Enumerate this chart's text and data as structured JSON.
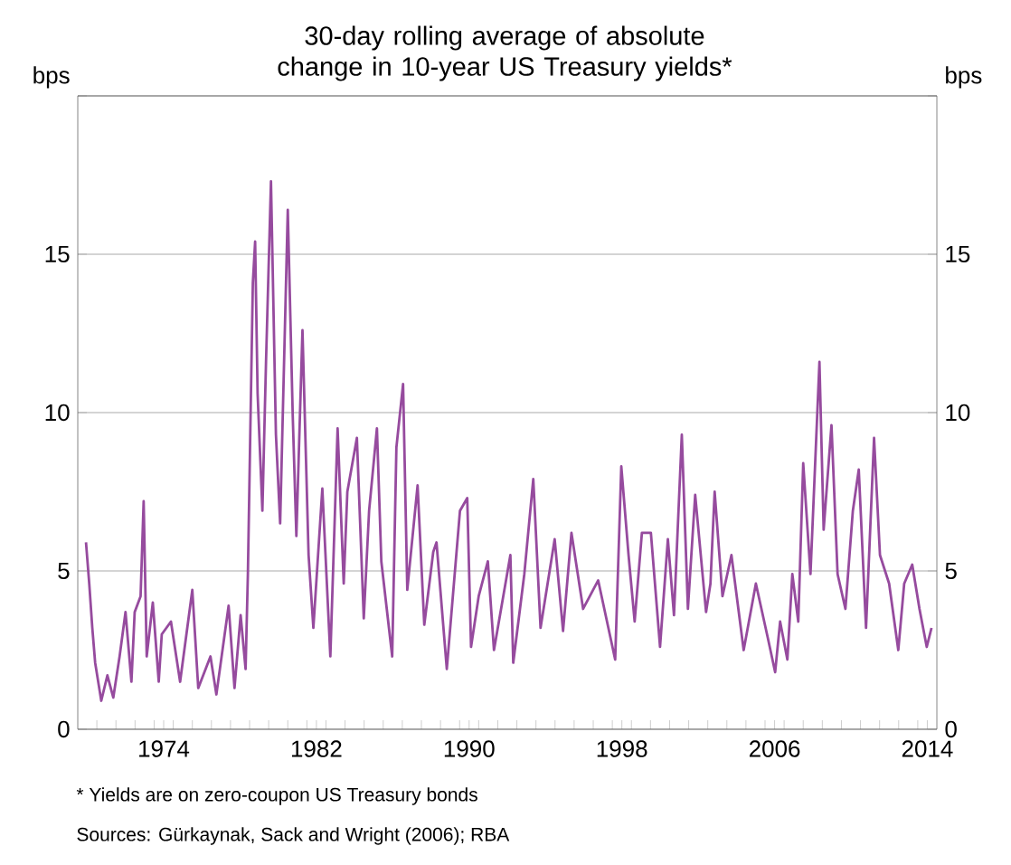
{
  "chart_data": {
    "type": "line",
    "title": "30-day rolling average of absolute change in 10-year US Treasury yields*",
    "ylabel": "bps",
    "y2label": "bps",
    "annotations": [
      "*    Yields are on zero-coupon US Treasury bonds",
      "Sources:  Gürkaynak, Sack and Wright (2006); RBA"
    ],
    "series": [
      {
        "color": "#964b9e",
        "axis": "y",
        "x": [
          1969.93,
          1970.1,
          1970.26,
          1970.41,
          1970.73,
          1971.05,
          1971.36,
          1971.69,
          1972.0,
          1972.31,
          1972.48,
          1972.79,
          1972.95,
          1973.11,
          1973.43,
          1973.74,
          1973.9,
          1974.38,
          1974.86,
          1975.5,
          1975.81,
          1976.45,
          1976.76,
          1977.4,
          1977.71,
          1978.03,
          1978.29,
          1978.41,
          1978.54,
          1978.67,
          1978.79,
          1978.92,
          1979.17,
          1979.36,
          1979.62,
          1979.88,
          1980.1,
          1980.5,
          1980.76,
          1980.95,
          1981.27,
          1981.59,
          1981.84,
          1982.31,
          1982.73,
          1983.11,
          1983.43,
          1983.62,
          1984.12,
          1984.48,
          1984.76,
          1985.17,
          1985.4,
          1985.97,
          1986.19,
          1986.54,
          1986.76,
          1987.3,
          1987.65,
          1988.12,
          1988.29,
          1988.83,
          1989.52,
          1989.9,
          1990.1,
          1990.5,
          1990.98,
          1991.3,
          1992.16,
          1992.31,
          1992.89,
          1993.36,
          1993.74,
          1994.48,
          1994.92,
          1995.36,
          1995.97,
          1996.76,
          1997.65,
          1997.97,
          1998.35,
          1998.67,
          1999.05,
          1999.52,
          2000.0,
          2000.41,
          2000.73,
          2001.14,
          2001.46,
          2001.84,
          2002.41,
          2002.64,
          2002.86,
          2003.27,
          2003.74,
          2004.38,
          2005.02,
          2005.64,
          2006.03,
          2006.29,
          2006.67,
          2006.93,
          2007.24,
          2007.5,
          2007.88,
          2008.35,
          2008.57,
          2008.98,
          2009.3,
          2009.71,
          2010.1,
          2010.41,
          2010.79,
          2011.21,
          2011.52,
          2012.0,
          2012.48,
          2012.79,
          2013.21,
          2013.59,
          2013.97,
          2014.22
        ],
        "values": [
          5.9,
          4.6,
          3.2,
          2.1,
          0.9,
          1.7,
          1.0,
          2.3,
          3.7,
          1.5,
          3.7,
          4.2,
          7.2,
          2.3,
          4.0,
          1.5,
          3.0,
          3.4,
          1.5,
          4.4,
          1.3,
          2.3,
          1.1,
          3.9,
          1.3,
          3.6,
          1.9,
          4.9,
          9.5,
          14.1,
          15.4,
          10.6,
          6.9,
          11.6,
          17.3,
          9.3,
          6.5,
          16.4,
          9.9,
          6.1,
          12.6,
          5.5,
          3.2,
          7.6,
          2.3,
          9.5,
          4.6,
          7.5,
          9.2,
          3.5,
          6.9,
          9.5,
          5.3,
          2.3,
          8.9,
          10.9,
          4.4,
          7.7,
          3.3,
          5.6,
          5.9,
          1.9,
          6.9,
          7.3,
          2.6,
          4.2,
          5.3,
          2.5,
          5.5,
          2.1,
          4.9,
          7.9,
          3.2,
          6.0,
          3.1,
          6.2,
          3.8,
          4.7,
          2.2,
          8.3,
          5.5,
          3.4,
          6.2,
          6.2,
          2.6,
          6.0,
          3.6,
          9.3,
          3.8,
          7.4,
          3.7,
          4.6,
          7.5,
          4.2,
          5.5,
          2.5,
          4.6,
          2.9,
          1.8,
          3.4,
          2.2,
          4.9,
          3.4,
          8.4,
          4.9,
          11.6,
          6.3,
          9.6,
          4.9,
          3.8,
          6.9,
          8.2,
          3.2,
          9.2,
          5.5,
          4.6,
          2.5,
          4.6,
          5.2,
          3.8,
          2.6,
          3.2
        ]
      }
    ],
    "xlim": [
      1969.5,
      2014.5
    ],
    "xticks": [
      {
        "value": 1970.5,
        "label": null
      },
      {
        "value": 1971.5,
        "label": null
      },
      {
        "value": 1972.5,
        "label": null
      },
      {
        "value": 1973.5,
        "label": null
      },
      1974,
      {
        "value": 1974.5,
        "label": null
      },
      {
        "value": 1975.5,
        "label": null
      },
      {
        "value": 1976.5,
        "label": null
      },
      {
        "value": 1977.5,
        "label": null
      },
      {
        "value": 1978.5,
        "label": null
      },
      {
        "value": 1979.5,
        "label": null
      },
      {
        "value": 1980.5,
        "label": null
      },
      {
        "value": 1981.5,
        "label": null
      },
      1982,
      {
        "value": 1982.5,
        "label": null
      },
      {
        "value": 1983.5,
        "label": null
      },
      {
        "value": 1984.5,
        "label": null
      },
      {
        "value": 1985.5,
        "label": null
      },
      {
        "value": 1986.5,
        "label": null
      },
      {
        "value": 1987.5,
        "label": null
      },
      {
        "value": 1988.5,
        "label": null
      },
      {
        "value": 1989.5,
        "label": null
      },
      1990,
      {
        "value": 1990.5,
        "label": null
      },
      {
        "value": 1991.5,
        "label": null
      },
      {
        "value": 1992.5,
        "label": null
      },
      {
        "value": 1993.5,
        "label": null
      },
      {
        "value": 1994.5,
        "label": null
      },
      {
        "value": 1995.5,
        "label": null
      },
      {
        "value": 1996.5,
        "label": null
      },
      {
        "value": 1997.5,
        "label": null
      },
      1998,
      {
        "value": 1998.5,
        "label": null
      },
      {
        "value": 1999.5,
        "label": null
      },
      {
        "value": 2000.5,
        "label": null
      },
      {
        "value": 2001.5,
        "label": null
      },
      {
        "value": 2002.5,
        "label": null
      },
      {
        "value": 2003.5,
        "label": null
      },
      {
        "value": 2004.5,
        "label": null
      },
      {
        "value": 2005.5,
        "label": null
      },
      2006,
      {
        "value": 2006.5,
        "label": null
      },
      {
        "value": 2007.5,
        "label": null
      },
      {
        "value": 2008.5,
        "label": null
      },
      {
        "value": 2009.5,
        "label": null
      },
      {
        "value": 2010.5,
        "label": null
      },
      {
        "value": 2011.5,
        "label": null
      },
      {
        "value": 2012.5,
        "label": null
      },
      {
        "value": 2013.5,
        "label": null
      },
      2014
    ],
    "ylim": [
      0,
      20
    ],
    "yticks": [
      0,
      5,
      10,
      15,
      {
        "value": 20,
        "label": null
      }
    ],
    "y2lim": [
      0,
      20
    ],
    "y2ticks": [
      0,
      5,
      10,
      15,
      {
        "value": 20,
        "label": null
      }
    ],
    "grid": "y",
    "marker": "none",
    "line_style": "solid"
  }
}
